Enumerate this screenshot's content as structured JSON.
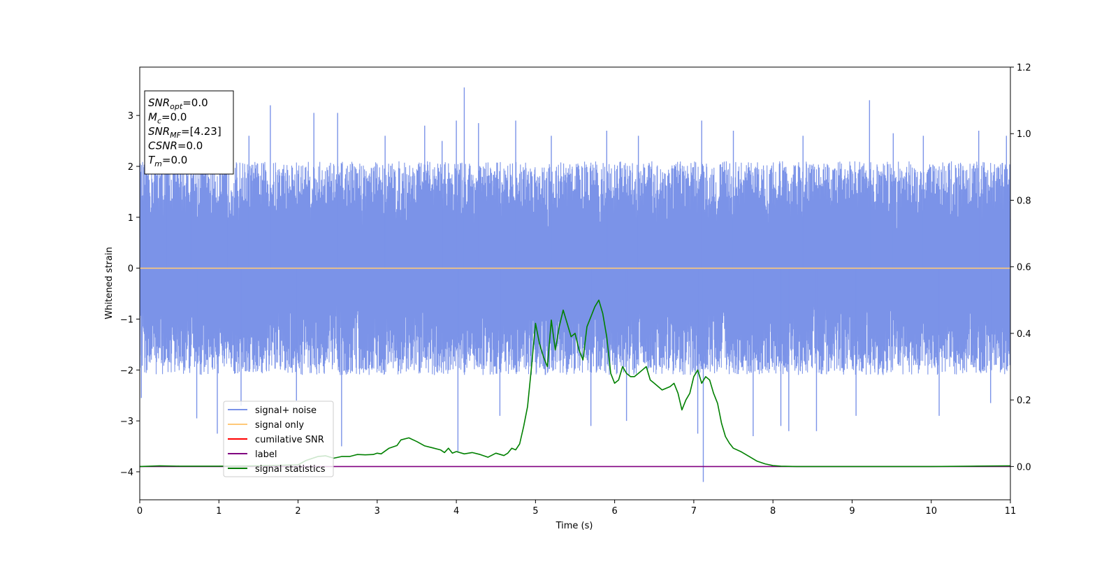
{
  "chart_data": {
    "type": "line",
    "xlabel": "Time (s)",
    "ylabel": "Whitened strain",
    "xlim": [
      0,
      11
    ],
    "ylim": [
      -4.55,
      3.95
    ],
    "y2lim": [
      -0.1,
      1.2
    ],
    "x_ticks": [
      "0",
      "1",
      "2",
      "3",
      "4",
      "5",
      "6",
      "7",
      "8",
      "9",
      "10",
      "11"
    ],
    "y_ticks": [
      "−4",
      "−3",
      "−2",
      "−1",
      "0",
      "1",
      "2",
      "3"
    ],
    "y2_ticks": [
      "0.0",
      "0.2",
      "0.4",
      "0.6",
      "0.8",
      "1.0",
      "1.2"
    ],
    "grid": false,
    "legend_position": "lower-left",
    "legend": [
      {
        "label": "signal+ noise",
        "color": "#7b93e8"
      },
      {
        "label": "signal only",
        "color": "#ffc878"
      },
      {
        "label": "cumilative SNR",
        "color": "#ff0000"
      },
      {
        "label": "label",
        "color": "#800080"
      },
      {
        "label": "signal statistics",
        "color": "#008000"
      }
    ],
    "stats_box": [
      {
        "name": "SNR",
        "sub": "opt",
        "value": "=0.0"
      },
      {
        "name": "M",
        "sub": "c",
        "value": "=0.0"
      },
      {
        "name": "SNR",
        "sub": "MF",
        "value": "=[4.23]"
      },
      {
        "name": "CSNR",
        "sub": "",
        "value": "=0.0"
      },
      {
        "name": "T",
        "sub": "m",
        "value": "=0.0"
      }
    ],
    "series": [
      {
        "name": "signal+ noise",
        "axis": "left",
        "color": "#7b93e8",
        "style": "noise-band",
        "x_range": [
          0,
          11
        ],
        "typical_upper": 1.9,
        "typical_lower": -1.9,
        "spikes": [
          {
            "x": 0.02,
            "y": -2.55
          },
          {
            "x": 0.08,
            "y": 2.95
          },
          {
            "x": 0.35,
            "y": 3.0
          },
          {
            "x": 0.65,
            "y": 2.8
          },
          {
            "x": 0.72,
            "y": -2.95
          },
          {
            "x": 0.98,
            "y": -3.25
          },
          {
            "x": 1.1,
            "y": 2.9
          },
          {
            "x": 1.28,
            "y": -2.7
          },
          {
            "x": 1.38,
            "y": 2.6
          },
          {
            "x": 1.65,
            "y": 3.2
          },
          {
            "x": 1.98,
            "y": -2.6
          },
          {
            "x": 2.2,
            "y": 3.05
          },
          {
            "x": 2.5,
            "y": 3.05
          },
          {
            "x": 2.55,
            "y": -3.5
          },
          {
            "x": 3.1,
            "y": 2.6
          },
          {
            "x": 3.6,
            "y": 2.8
          },
          {
            "x": 3.82,
            "y": 2.5
          },
          {
            "x": 4.0,
            "y": 2.9
          },
          {
            "x": 4.02,
            "y": -3.6
          },
          {
            "x": 4.1,
            "y": 3.55
          },
          {
            "x": 4.28,
            "y": 2.85
          },
          {
            "x": 4.55,
            "y": -2.9
          },
          {
            "x": 4.75,
            "y": 2.9
          },
          {
            "x": 5.2,
            "y": 2.6
          },
          {
            "x": 5.7,
            "y": -3.1
          },
          {
            "x": 5.9,
            "y": 2.7
          },
          {
            "x": 6.15,
            "y": -3.0
          },
          {
            "x": 6.3,
            "y": 2.6
          },
          {
            "x": 7.1,
            "y": 2.9
          },
          {
            "x": 7.12,
            "y": -4.2
          },
          {
            "x": 7.05,
            "y": -3.25
          },
          {
            "x": 7.5,
            "y": 2.7
          },
          {
            "x": 7.75,
            "y": -3.3
          },
          {
            "x": 8.38,
            "y": 2.6
          },
          {
            "x": 8.1,
            "y": -3.1
          },
          {
            "x": 8.2,
            "y": -3.2
          },
          {
            "x": 8.55,
            "y": -3.2
          },
          {
            "x": 9.05,
            "y": -2.9
          },
          {
            "x": 9.22,
            "y": 3.3
          },
          {
            "x": 9.52,
            "y": 2.65
          },
          {
            "x": 9.9,
            "y": 2.6
          },
          {
            "x": 10.1,
            "y": -2.9
          },
          {
            "x": 10.6,
            "y": 2.7
          },
          {
            "x": 10.75,
            "y": -2.65
          },
          {
            "x": 10.95,
            "y": 2.6
          }
        ]
      },
      {
        "name": "signal only",
        "axis": "left",
        "color": "#ffc878",
        "x": [
          0,
          11
        ],
        "y": [
          0,
          0
        ]
      },
      {
        "name": "label",
        "axis": "right",
        "color": "#800080",
        "x": [
          0,
          11
        ],
        "y": [
          0,
          0
        ]
      },
      {
        "name": "signal statistics",
        "axis": "right",
        "color": "#008000",
        "x": [
          0,
          0.25,
          0.5,
          1.0,
          1.5,
          2.0,
          2.1,
          2.25,
          2.35,
          2.45,
          2.55,
          2.65,
          2.75,
          2.85,
          2.95,
          3.0,
          3.05,
          3.15,
          3.25,
          3.3,
          3.4,
          3.5,
          3.6,
          3.7,
          3.8,
          3.85,
          3.9,
          3.95,
          4.0,
          4.1,
          4.2,
          4.3,
          4.4,
          4.5,
          4.6,
          4.65,
          4.7,
          4.75,
          4.8,
          4.85,
          4.9,
          4.95,
          5.0,
          5.05,
          5.1,
          5.15,
          5.2,
          5.25,
          5.3,
          5.35,
          5.4,
          5.45,
          5.5,
          5.55,
          5.6,
          5.65,
          5.7,
          5.75,
          5.8,
          5.85,
          5.9,
          5.95,
          6.0,
          6.05,
          6.1,
          6.15,
          6.2,
          6.25,
          6.3,
          6.35,
          6.4,
          6.45,
          6.5,
          6.6,
          6.7,
          6.75,
          6.8,
          6.85,
          6.9,
          6.95,
          7.0,
          7.05,
          7.1,
          7.15,
          7.2,
          7.25,
          7.3,
          7.35,
          7.4,
          7.45,
          7.5,
          7.6,
          7.7,
          7.8,
          7.9,
          8.0,
          8.1,
          8.3,
          8.5,
          9.0,
          9.5,
          10.0,
          10.5,
          11.0
        ],
        "y": [
          0.0,
          0.002,
          0.001,
          0.001,
          0.002,
          0.005,
          0.018,
          0.03,
          0.032,
          0.025,
          0.03,
          0.03,
          0.036,
          0.035,
          0.036,
          0.04,
          0.038,
          0.055,
          0.063,
          0.08,
          0.086,
          0.075,
          0.062,
          0.056,
          0.05,
          0.042,
          0.055,
          0.04,
          0.045,
          0.038,
          0.042,
          0.036,
          0.028,
          0.04,
          0.033,
          0.04,
          0.055,
          0.05,
          0.068,
          0.12,
          0.18,
          0.3,
          0.43,
          0.37,
          0.33,
          0.3,
          0.44,
          0.35,
          0.42,
          0.47,
          0.43,
          0.39,
          0.4,
          0.35,
          0.32,
          0.42,
          0.45,
          0.48,
          0.5,
          0.46,
          0.39,
          0.28,
          0.25,
          0.26,
          0.3,
          0.28,
          0.27,
          0.27,
          0.28,
          0.29,
          0.3,
          0.26,
          0.25,
          0.23,
          0.24,
          0.25,
          0.22,
          0.17,
          0.2,
          0.22,
          0.27,
          0.29,
          0.25,
          0.27,
          0.26,
          0.22,
          0.19,
          0.13,
          0.09,
          0.07,
          0.055,
          0.044,
          0.03,
          0.016,
          0.008,
          0.003,
          0.001,
          0.0,
          0.0,
          0.0,
          0.0,
          0.0,
          0.001,
          0.002
        ]
      }
    ]
  }
}
